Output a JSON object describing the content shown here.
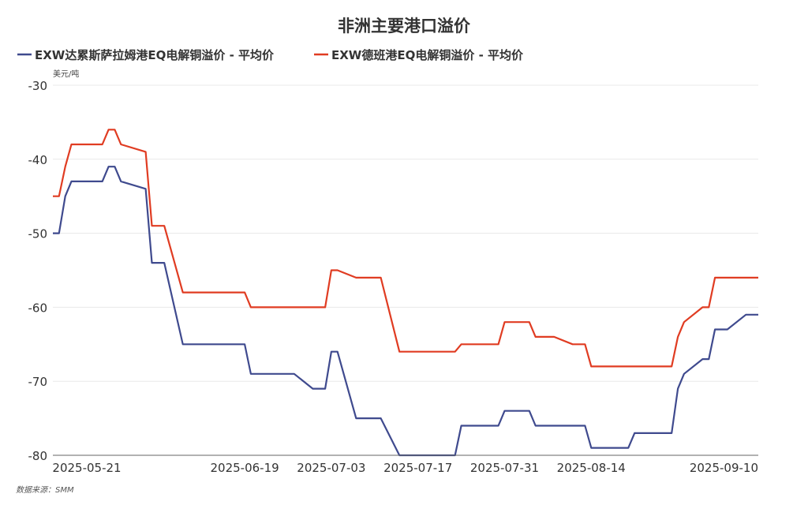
{
  "chart_data": {
    "type": "line",
    "title": "非洲主要港口溢价",
    "unit": "美元/吨",
    "source": "数据来源：SMM",
    "ylim": [
      -80,
      -30
    ],
    "yticks": [
      -30,
      -40,
      -50,
      -60,
      -70,
      -80
    ],
    "grid": true,
    "legend_position": "top-left",
    "xtick_labels": [
      "2025-05-21",
      "2025-06-19",
      "2025-07-03",
      "2025-07-17",
      "2025-07-31",
      "2025-08-14",
      "2025-09-10"
    ],
    "x": [
      "2025-05-19",
      "2025-05-20",
      "2025-05-21",
      "2025-05-22",
      "2025-05-23",
      "2025-05-26",
      "2025-05-27",
      "2025-05-28",
      "2025-05-29",
      "2025-05-30",
      "2025-06-03",
      "2025-06-04",
      "2025-06-05",
      "2025-06-06",
      "2025-06-09",
      "2025-06-10",
      "2025-06-11",
      "2025-06-12",
      "2025-06-13",
      "2025-06-16",
      "2025-06-17",
      "2025-06-18",
      "2025-06-19",
      "2025-06-20",
      "2025-06-23",
      "2025-06-24",
      "2025-06-25",
      "2025-06-26",
      "2025-06-27",
      "2025-06-30",
      "2025-07-01",
      "2025-07-02",
      "2025-07-03",
      "2025-07-04",
      "2025-07-07",
      "2025-07-08",
      "2025-07-09",
      "2025-07-10",
      "2025-07-11",
      "2025-07-14",
      "2025-07-15",
      "2025-07-16",
      "2025-07-17",
      "2025-07-18",
      "2025-07-21",
      "2025-07-22",
      "2025-07-23",
      "2025-07-24",
      "2025-07-25",
      "2025-07-28",
      "2025-07-29",
      "2025-07-30",
      "2025-07-31",
      "2025-08-01",
      "2025-08-04",
      "2025-08-05",
      "2025-08-06",
      "2025-08-07",
      "2025-08-08",
      "2025-08-11",
      "2025-08-12",
      "2025-08-13",
      "2025-08-14",
      "2025-08-15",
      "2025-08-18",
      "2025-08-19",
      "2025-08-20",
      "2025-08-21",
      "2025-08-22",
      "2025-08-25",
      "2025-08-26",
      "2025-08-27",
      "2025-08-28",
      "2025-08-29",
      "2025-09-01",
      "2025-09-02",
      "2025-09-03",
      "2025-09-04",
      "2025-09-05",
      "2025-09-08",
      "2025-09-09",
      "2025-09-10"
    ],
    "series": [
      {
        "name": "EXW达累斯萨拉姆港EQ电解铜溢价 - 平均价",
        "color": "#3f4a8e",
        "values": [
          -50,
          -50,
          -45,
          -43,
          -43,
          -43,
          -43,
          -41,
          -41,
          -43,
          -44,
          -54,
          -54,
          -54,
          -65,
          -65,
          -65,
          -65,
          -65,
          -65,
          -65,
          -65,
          -65,
          -69,
          -69,
          -69,
          -69,
          -69,
          -69,
          -71,
          -71,
          -71,
          -66,
          -66,
          -75,
          -75,
          -75,
          -75,
          -75,
          -80,
          -80,
          -80,
          -80,
          -80,
          -80,
          -80,
          -80,
          -76,
          -76,
          -76,
          -76,
          -76,
          -74,
          -74,
          -74,
          -76,
          -76,
          -76,
          -76,
          -76,
          -76,
          -76,
          -79,
          -79,
          -79,
          -79,
          -79,
          -77,
          -77,
          -77,
          -77,
          -77,
          -71,
          -69,
          -67,
          -67,
          -63,
          -63,
          -63,
          -61,
          -61,
          -61
        ]
      },
      {
        "name": "EXW德班港EQ电解铜溢价 - 平均价",
        "color": "#e03c22",
        "values": [
          -45,
          -45,
          -41,
          -38,
          -38,
          -38,
          -38,
          -36,
          -36,
          -38,
          -39,
          -49,
          -49,
          -49,
          -58,
          -58,
          -58,
          -58,
          -58,
          -58,
          -58,
          -58,
          -58,
          -60,
          -60,
          -60,
          -60,
          -60,
          -60,
          -60,
          -60,
          -60,
          -55,
          -55,
          -56,
          -56,
          -56,
          -56,
          -56,
          -66,
          -66,
          -66,
          -66,
          -66,
          -66,
          -66,
          -66,
          -65,
          -65,
          -65,
          -65,
          -65,
          -62,
          -62,
          -62,
          -64,
          -64,
          -64,
          -64,
          -65,
          -65,
          -65,
          -68,
          -68,
          -68,
          -68,
          -68,
          -68,
          -68,
          -68,
          -68,
          -68,
          -64,
          -62,
          -60,
          -60,
          -56,
          -56,
          -56,
          -56,
          -56,
          -56
        ]
      }
    ]
  }
}
